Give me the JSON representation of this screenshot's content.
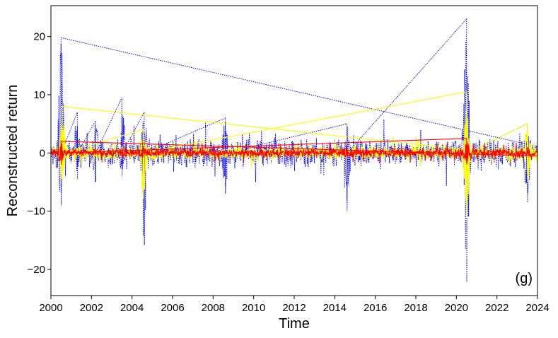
{
  "chart_data": {
    "type": "line",
    "panel_label": "(g)",
    "xlabel": "Time",
    "ylabel": "Reconstructed return",
    "xlim": [
      2000,
      2024
    ],
    "ylim": [
      -24.5,
      25.3
    ],
    "x_ticks": [
      2000,
      2002,
      2004,
      2006,
      2008,
      2010,
      2012,
      2014,
      2016,
      2018,
      2020,
      2022,
      2024
    ],
    "y_ticks": [
      -20,
      -10,
      0,
      10,
      20
    ],
    "x_tick_labels": [
      "2000",
      "2002",
      "2004",
      "2006",
      "2008",
      "2010",
      "2012",
      "2014",
      "2016",
      "2018",
      "2020",
      "2022",
      "2024"
    ],
    "y_tick_labels": [
      "−20",
      "−10",
      "0",
      "10",
      "20"
    ],
    "grid": false,
    "series": [
      {
        "color": "#0000ff",
        "style": "dotted",
        "base_band": 1.8,
        "events": [
          {
            "x": 2000.5,
            "min": -9.0,
            "max": 19.8
          },
          {
            "x": 2001.3,
            "min": -4.5,
            "max": 7.0
          },
          {
            "x": 2002.2,
            "min": -5.0,
            "max": 5.5
          },
          {
            "x": 2003.5,
            "min": -4.0,
            "max": 9.5
          },
          {
            "x": 2004.6,
            "min": -15.8,
            "max": 7.0
          },
          {
            "x": 2008.6,
            "min": -7.0,
            "max": 6.0
          },
          {
            "x": 2014.6,
            "min": -10.0,
            "max": 5.0
          },
          {
            "x": 2020.5,
            "min": -22.2,
            "max": 23.0
          },
          {
            "x": 2023.5,
            "min": -8.5,
            "max": 5.0
          }
        ]
      },
      {
        "color": "#ffff00",
        "style": "solid",
        "base_band": 0.9,
        "events": [
          {
            "x": 2000.55,
            "min": -5.0,
            "max": 8.0
          },
          {
            "x": 2004.55,
            "min": -8.0,
            "max": 4.0
          },
          {
            "x": 2020.5,
            "min": -11.0,
            "max": 10.5
          },
          {
            "x": 2023.5,
            "min": -5.0,
            "max": 5.0
          }
        ]
      },
      {
        "color": "#ff0000",
        "style": "solid",
        "base_band": 0.6,
        "events": [
          {
            "x": 2000.5,
            "min": -2.0,
            "max": 2.0
          },
          {
            "x": 2020.5,
            "min": -2.0,
            "max": 2.5
          }
        ]
      }
    ]
  }
}
